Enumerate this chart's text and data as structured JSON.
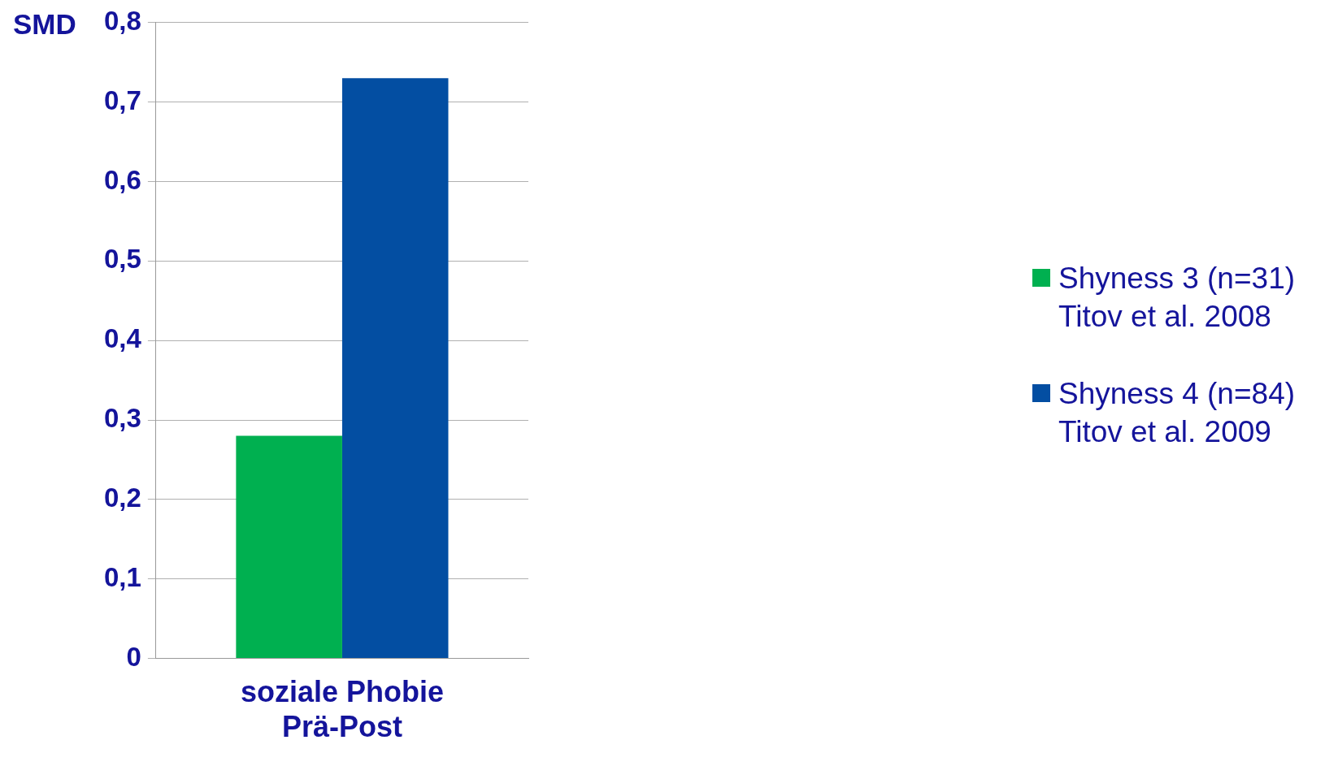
{
  "chart_data": {
    "type": "bar",
    "ylabel": "SMD",
    "categories": [
      "soziale Phobie\nPrä-Post"
    ],
    "series": [
      {
        "name": "Shyness 3 (n=31)\nTitov et al. 2008",
        "color": "#00b050",
        "values": [
          0.28
        ]
      },
      {
        "name": "Shyness 4 (n=84)\nTitov et al. 2009",
        "color": "#034ea2",
        "values": [
          0.73
        ]
      }
    ],
    "ylim": [
      0,
      0.8
    ],
    "yticks": [
      {
        "value": 0,
        "label": "0"
      },
      {
        "value": 0.1,
        "label": "0,1"
      },
      {
        "value": 0.2,
        "label": "0,2"
      },
      {
        "value": 0.3,
        "label": "0,3"
      },
      {
        "value": 0.4,
        "label": "0,4"
      },
      {
        "value": 0.5,
        "label": "0,5"
      },
      {
        "value": 0.6,
        "label": "0,6"
      },
      {
        "value": 0.7,
        "label": "0,7"
      },
      {
        "value": 0.8,
        "label": "0,8"
      }
    ],
    "grid": "y",
    "legend": "right"
  }
}
